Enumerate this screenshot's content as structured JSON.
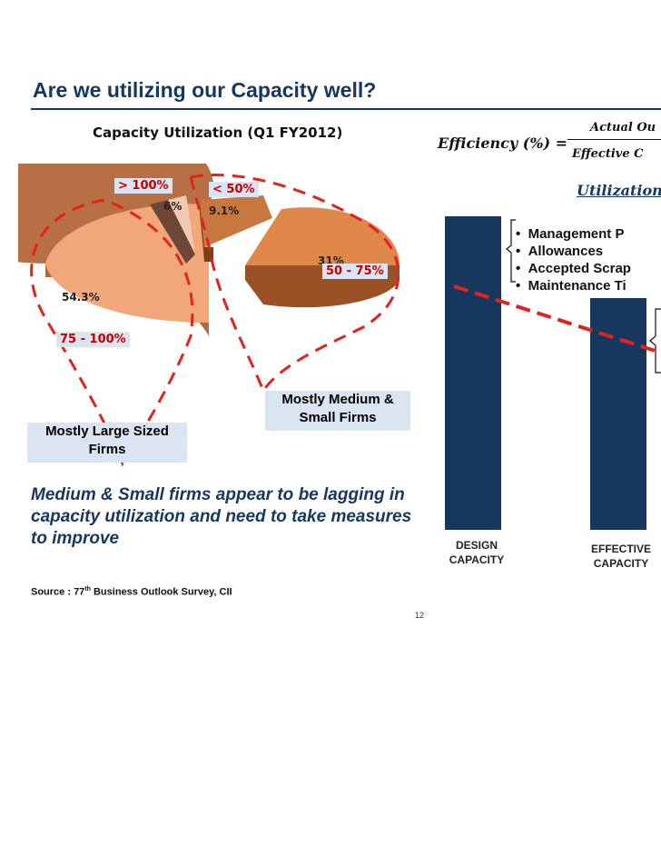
{
  "slide": {
    "title": "Are we utilizing our Capacity well?",
    "page_number": "12",
    "source_prefix": "Source : 77",
    "source_sup": "th",
    "source_suffix": " Business Outlook Survey, CII"
  },
  "pie_chart": {
    "title": "Capacity Utilization (Q1 FY2012)",
    "slices": [
      {
        "range": "> 100%",
        "value_label": "6%",
        "value": 6.0,
        "color": "#f2c9b3"
      },
      {
        "range": "< 50%",
        "value_label": "9.1%",
        "value": 9.1,
        "color": "#c8773e"
      },
      {
        "range": "50 - 75%",
        "value_label": "31%",
        "value": 31.0,
        "color": "#e0884a"
      },
      {
        "range": "75 - 100%",
        "value_label": "54.3%",
        "value": 54.3,
        "color": "#f2a77b"
      }
    ],
    "callout_medium_small": "Mostly Medium & Small Firms",
    "callout_large": "Mostly Large Sized Firms"
  },
  "conclusion": "Medium & Small firms appear to be lagging in capacity utilization and need to take measures to improve",
  "formula": {
    "lhs": "Efficiency (%) =",
    "numerator": "Actual Ou",
    "denominator": "Effective C",
    "utilization": "Utilization ("
  },
  "bar_chart": {
    "bar_color": "#17375e",
    "categories": [
      "DESIGN CAPACITY",
      "EFFECTIVE CAPACITY"
    ],
    "category_lines": [
      [
        "DESIGN",
        "CAPACITY"
      ],
      [
        "EFFECTIVE",
        "CAPACITY"
      ]
    ],
    "bullets": [
      "Management P",
      "Allowances",
      "Accepted Scrap",
      "Maintenance Ti"
    ]
  },
  "colors": {
    "title": "#17375e",
    "dashed_line": "#e0231f",
    "callout_bg": "#dbe5f1",
    "range_label": "#c00000"
  }
}
